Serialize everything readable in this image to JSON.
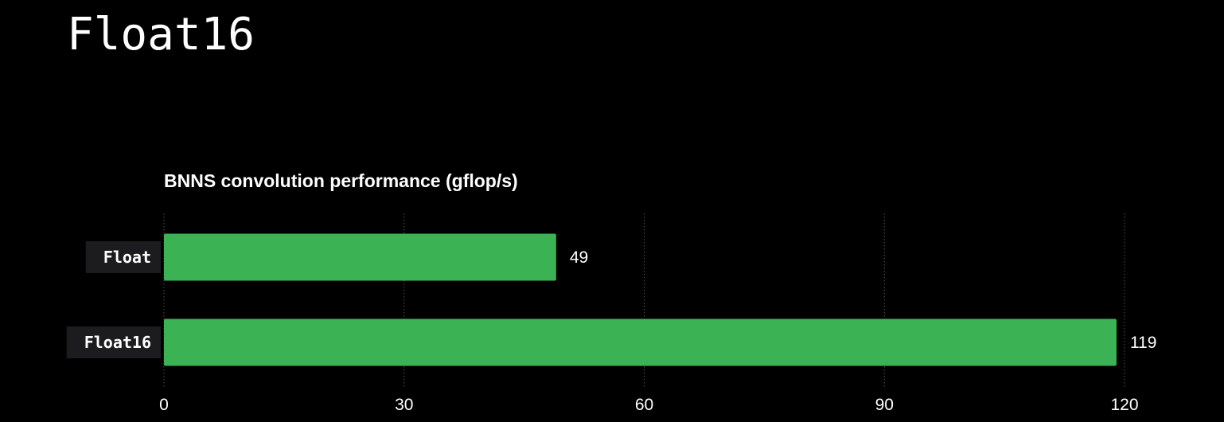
{
  "slide": {
    "title": "Float16"
  },
  "colors": {
    "background": "#000000",
    "bar": "#3bb354",
    "label_box": "#1c1c1e",
    "grid": "#555555",
    "text": "#ffffff"
  },
  "chart_data": {
    "type": "bar",
    "orientation": "horizontal",
    "title": "BNNS convolution performance (gflop/s)",
    "categories": [
      "Float",
      "Float16"
    ],
    "values": [
      49,
      119
    ],
    "value_labels": [
      "49",
      "119"
    ],
    "xlim": [
      0,
      120
    ],
    "x_ticks": [
      0,
      30,
      60,
      90,
      120
    ],
    "x_tick_labels": [
      "0",
      "30",
      "60",
      "90",
      "120"
    ],
    "xlabel": "",
    "ylabel": "",
    "grid": true,
    "legend": "none"
  }
}
